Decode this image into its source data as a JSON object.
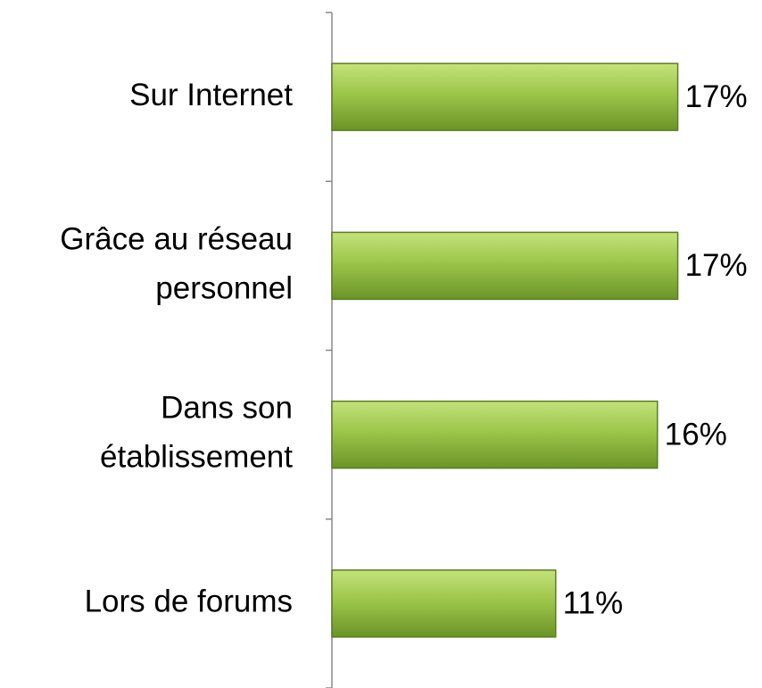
{
  "chart_data": {
    "type": "bar",
    "orientation": "horizontal",
    "categories": [
      "Sur Internet",
      "Grâce au réseau\npersonnel",
      "Dans son\nétablissement",
      "Lors de forums"
    ],
    "values": [
      17,
      17,
      16,
      11
    ],
    "value_labels": [
      "17%",
      "17%",
      "16%",
      "11%"
    ],
    "color": "#8cb83c"
  }
}
